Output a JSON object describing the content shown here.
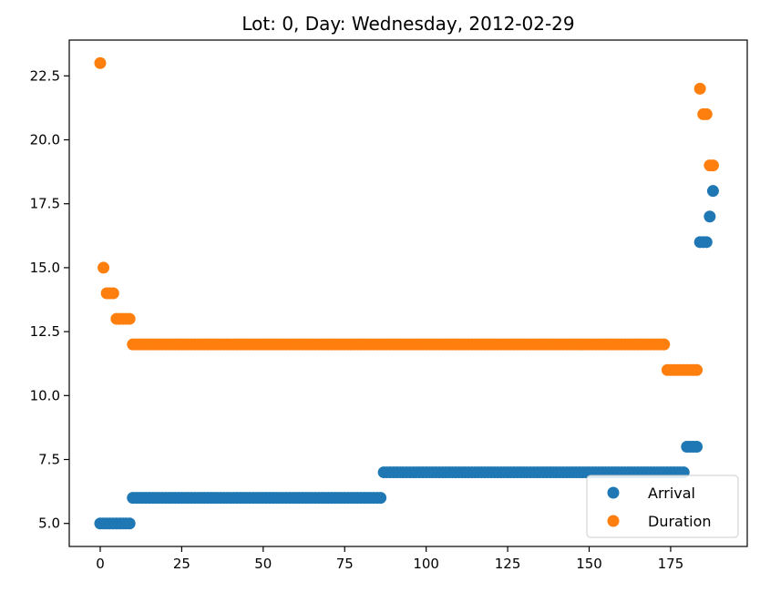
{
  "chart_data": {
    "type": "scatter",
    "title": "Lot: 0, Day: Wednesday, 2012-02-29",
    "xlabel": "",
    "ylabel": "",
    "xlim": [
      -9.5,
      198.5
    ],
    "ylim": [
      4.1,
      23.9
    ],
    "x_ticks": [
      0,
      25,
      50,
      75,
      100,
      125,
      150,
      175
    ],
    "x_tick_labels": [
      "0",
      "25",
      "50",
      "75",
      "100",
      "125",
      "150",
      "175"
    ],
    "y_ticks": [
      5.0,
      7.5,
      10.0,
      12.5,
      15.0,
      17.5,
      20.0,
      22.5
    ],
    "y_tick_labels": [
      "5.0",
      "7.5",
      "10.0",
      "12.5",
      "15.0",
      "17.5",
      "20.0",
      "22.5"
    ],
    "grid": false,
    "legend_position": "lower-right",
    "series": [
      {
        "name": "Arrival",
        "color": "#1f77b4",
        "runs": [
          {
            "x_start": 0,
            "x_end": 9,
            "y": 5
          },
          {
            "x_start": 10,
            "x_end": 86,
            "y": 6
          },
          {
            "x_start": 87,
            "x_end": 179,
            "y": 7
          },
          {
            "x_start": 180,
            "x_end": 183,
            "y": 8
          },
          {
            "x_start": 184,
            "x_end": 186,
            "y": 16
          },
          {
            "x_start": 187,
            "x_end": 187,
            "y": 17
          },
          {
            "x_start": 188,
            "x_end": 188,
            "y": 18
          }
        ]
      },
      {
        "name": "Duration",
        "color": "#ff7f0e",
        "runs": [
          {
            "x_start": 0,
            "x_end": 0,
            "y": 23
          },
          {
            "x_start": 1,
            "x_end": 1,
            "y": 15
          },
          {
            "x_start": 2,
            "x_end": 4,
            "y": 14
          },
          {
            "x_start": 5,
            "x_end": 9,
            "y": 13
          },
          {
            "x_start": 10,
            "x_end": 173,
            "y": 12
          },
          {
            "x_start": 174,
            "x_end": 183,
            "y": 11
          },
          {
            "x_start": 184,
            "x_end": 184,
            "y": 22
          },
          {
            "x_start": 185,
            "x_end": 186,
            "y": 21
          },
          {
            "x_start": 187,
            "x_end": 188,
            "y": 19
          }
        ]
      }
    ]
  }
}
